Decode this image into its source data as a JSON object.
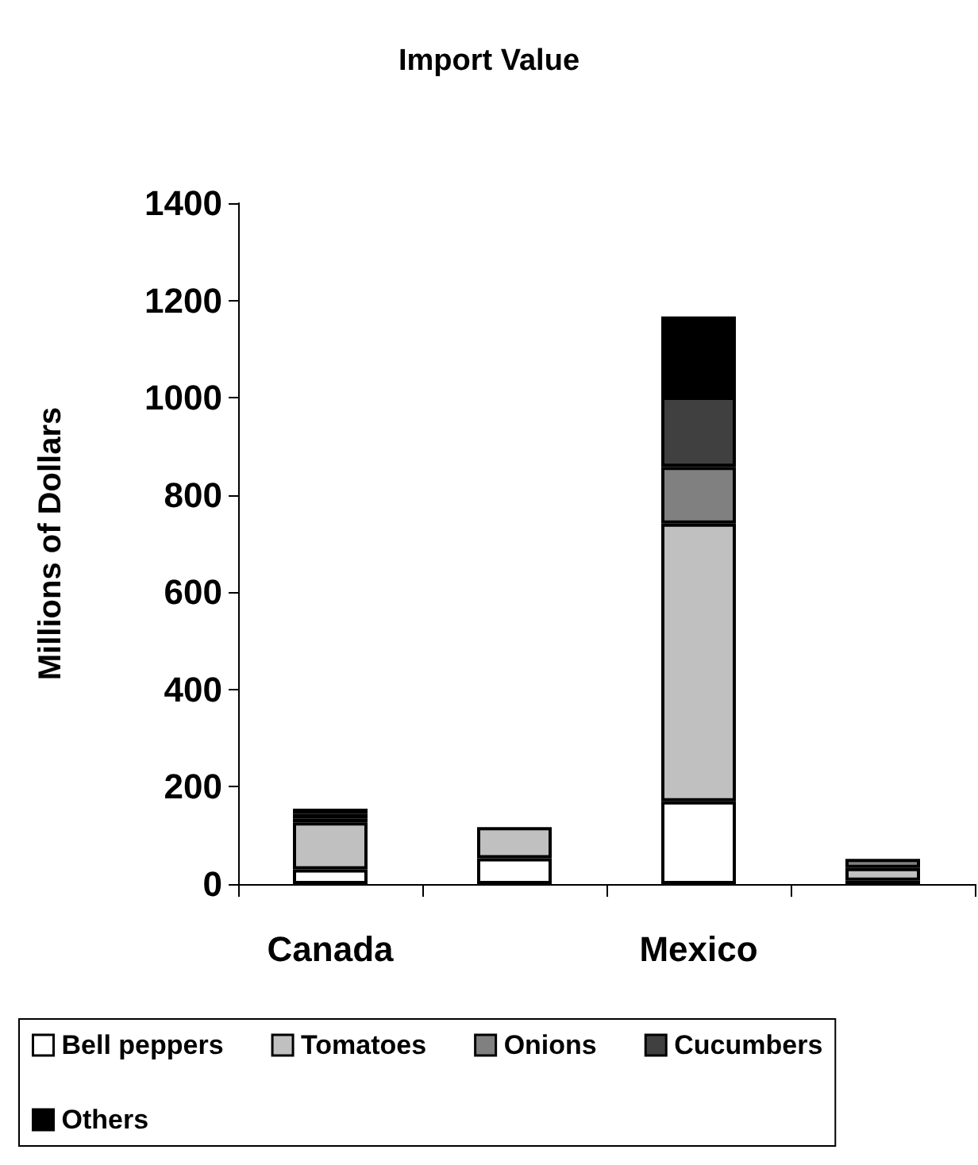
{
  "chart_data": {
    "type": "bar",
    "title": "Import Value",
    "ylabel": "Millions of Dollars",
    "categories": [
      "Canada",
      null,
      "Mexico",
      null
    ],
    "stacked": true,
    "ylim": [
      0,
      1400
    ],
    "yticks": [
      0,
      200,
      400,
      600,
      800,
      1000,
      1200,
      1400
    ],
    "grid": false,
    "legend": "bottom",
    "series": [
      {
        "name": "Bell peppers",
        "color": "#ffffff",
        "values": [
          30,
          53,
          170,
          7
        ]
      },
      {
        "name": "Tomatoes",
        "color": "#c0c0c0",
        "values": [
          97,
          64,
          571,
          26
        ]
      },
      {
        "name": "Onions",
        "color": "#808080",
        "values": [
          8,
          null,
          117,
          19
        ]
      },
      {
        "name": "Cucumbers",
        "color": "#404040",
        "values": [
          10,
          null,
          144,
          null
        ]
      },
      {
        "name": "Others",
        "color": "#000000",
        "values": [
          10,
          null,
          165,
          null
        ]
      }
    ]
  }
}
